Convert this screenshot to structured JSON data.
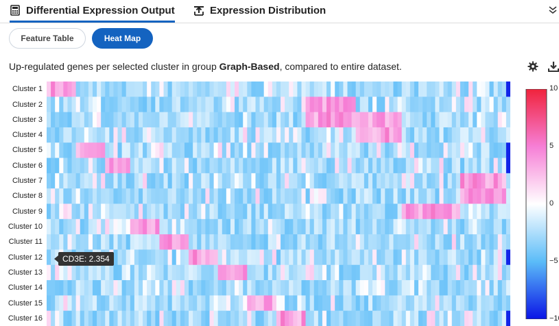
{
  "tabs": [
    {
      "label": "Differential Expression Output",
      "icon": "calculator-icon",
      "active": true
    },
    {
      "label": "Expression Distribution",
      "icon": "upload-chart-icon",
      "active": false
    }
  ],
  "view_toggle": {
    "feature_table": "Feature Table",
    "heat_map": "Heat Map"
  },
  "description": {
    "prefix": "Up-regulated genes per selected cluster in group ",
    "group": "Graph-Based",
    "suffix": ", compared to entire dataset."
  },
  "chart_data": {
    "type": "heatmap",
    "rows": [
      "Cluster 1",
      "Cluster 2",
      "Cluster 3",
      "Cluster 4",
      "Cluster 5",
      "Cluster 6",
      "Cluster 7",
      "Cluster 8",
      "Cluster 9",
      "Cluster 10",
      "Cluster 11",
      "Cluster 12",
      "Cluster 13",
      "Cluster 14",
      "Cluster 15",
      "Cluster 16"
    ],
    "colorscale": {
      "min": -10,
      "max": 10,
      "colors": [
        "#0a14e6",
        "#5bbcf8",
        "#ffffff",
        "#f67fd6",
        "#f0233c"
      ]
    },
    "colorbar_ticks": [
      "10",
      "5",
      "0",
      "−5",
      "−10"
    ],
    "tooltip": "CD3E: 2.354",
    "column_count": 111,
    "cluster_blocks": [
      {
        "label": "Cluster 1",
        "columns": 7,
        "high_rows": [
          1
        ]
      },
      {
        "label": "Cluster 5",
        "columns": 7,
        "high_rows": [
          5
        ]
      },
      {
        "label": "Cluster 6",
        "columns": 6,
        "high_rows": [
          6
        ]
      },
      {
        "label": "Cluster 10",
        "columns": 7,
        "high_rows": [
          10
        ]
      },
      {
        "label": "Cluster 11",
        "columns": 7,
        "high_rows": [
          11
        ]
      },
      {
        "label": "Cluster 12",
        "columns": 7,
        "high_rows": [
          12
        ]
      },
      {
        "label": "Cluster 13",
        "columns": 7,
        "high_rows": [
          13
        ]
      },
      {
        "label": "Cluster 15",
        "columns": 7,
        "high_rows": [
          15
        ]
      },
      {
        "label": "Cluster 16",
        "columns": 7,
        "high_rows": [
          16
        ]
      },
      {
        "label": "Cluster 2",
        "columns": 12,
        "high_rows": [
          2,
          3
        ]
      },
      {
        "label": "Cluster 3",
        "columns": 11,
        "high_rows": [
          3,
          4
        ]
      },
      {
        "label": "Cluster 9",
        "columns": 14,
        "high_rows": [
          9
        ]
      },
      {
        "label": "Cluster 8",
        "columns": 11,
        "high_rows": [
          7,
          8
        ]
      }
    ]
  }
}
